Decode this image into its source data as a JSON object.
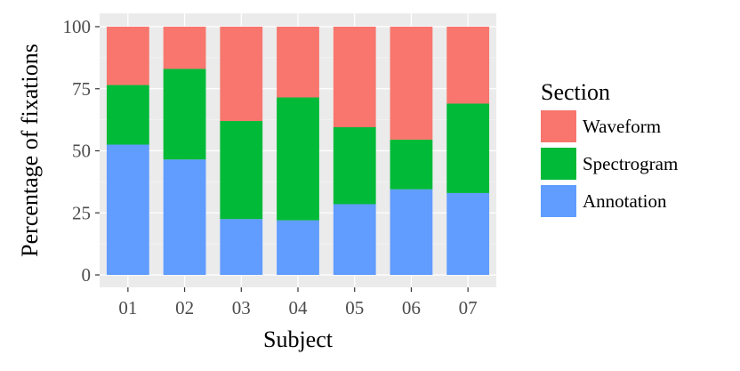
{
  "chart_data": {
    "type": "bar",
    "stacked": true,
    "xlabel": "Subject",
    "ylabel": "Percentage of fixations",
    "ylim": [
      0,
      100
    ],
    "yticks": [
      0,
      25,
      50,
      75,
      100
    ],
    "categories": [
      "01",
      "02",
      "03",
      "04",
      "05",
      "06",
      "07"
    ],
    "series": [
      {
        "name": "Annotation",
        "color": "#619CFF",
        "values": [
          52.5,
          46.5,
          22.5,
          22,
          28.5,
          34.5,
          33
        ]
      },
      {
        "name": "Spectrogram",
        "color": "#00BA38",
        "values": [
          24,
          36.5,
          39.5,
          49.5,
          31,
          20,
          36
        ]
      },
      {
        "name": "Waveform",
        "color": "#F8766D",
        "values": [
          23.5,
          17,
          38,
          28.5,
          40.5,
          45.5,
          31
        ]
      }
    ],
    "legend": {
      "title": "Section",
      "placement": "right",
      "order": [
        "Waveform",
        "Spectrogram",
        "Annotation"
      ]
    },
    "grid": true,
    "panel_background": "#EBEBEB"
  }
}
